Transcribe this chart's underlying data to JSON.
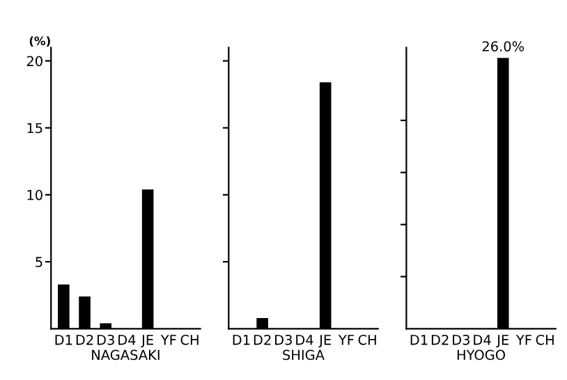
{
  "chart_data": [
    {
      "type": "bar",
      "xlabel": "NAGASAKI",
      "ylabel": "(%)",
      "categories": [
        "D1",
        "D2",
        "D3",
        "D4",
        "JE",
        "YF",
        "CH"
      ],
      "values": [
        3.3,
        2.4,
        0.4,
        0,
        10.4,
        0,
        0
      ],
      "color": "#000000",
      "ylim": [
        0,
        21
      ],
      "yticks": [
        5,
        10,
        15,
        20
      ],
      "grid": false,
      "legend": false
    },
    {
      "type": "bar",
      "xlabel": "SHIGA",
      "categories": [
        "D1",
        "D2",
        "D3",
        "D4",
        "JE",
        "YF",
        "CH"
      ],
      "values": [
        0,
        0.8,
        0,
        0,
        18.4,
        0,
        0
      ],
      "color": "#000000",
      "ylim": [
        0,
        21
      ],
      "yticks": [
        {
          "value": 5,
          "label": null
        },
        {
          "value": 10,
          "label": null
        },
        {
          "value": 15,
          "label": null
        },
        {
          "value": 20,
          "label": null
        }
      ],
      "tick_labels": "x",
      "grid": false,
      "legend": false
    },
    {
      "type": "bar",
      "xlabel": "HYOGO",
      "categories": [
        "D1",
        "D2",
        "D3",
        "D4",
        "JE",
        "YF",
        "CH"
      ],
      "values": [
        0,
        0,
        0,
        0,
        26.0,
        0,
        0
      ],
      "value_labels": [
        null,
        null,
        null,
        null,
        "26.0%",
        null,
        null
      ],
      "color": "#000000",
      "ylim": [
        0,
        27
      ],
      "yticks": [
        {
          "value": 5,
          "label": null
        },
        {
          "value": 10,
          "label": null
        },
        {
          "value": 15,
          "label": null
        },
        {
          "value": 20,
          "label": null
        }
      ],
      "tick_labels": "x",
      "grid": false,
      "legend": false
    }
  ]
}
